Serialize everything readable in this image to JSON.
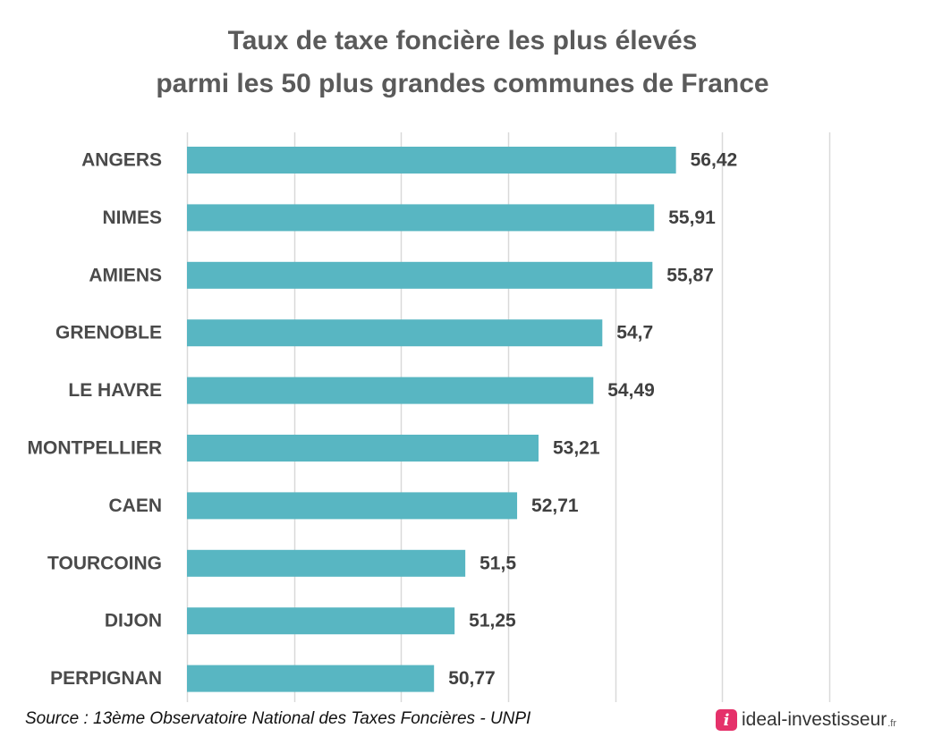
{
  "title_lines": [
    "Taux de taxe foncière les plus élevés",
    "parmi les 50 plus grandes communes de France"
  ],
  "source": "Source : 13ème Observatoire National des Taxes Foncières - UNPI",
  "brand": {
    "icon_letter": "i",
    "name": "ideal-investisseur",
    "tld": ".fr",
    "icon_color": "#e5316a"
  },
  "chart_data": {
    "type": "bar",
    "orientation": "horizontal",
    "title": "Taux de taxe foncière les plus élevés parmi les 50 plus grandes communes de France",
    "categories": [
      "ANGERS",
      "NIMES",
      "AMIENS",
      "GRENOBLE",
      "LE HAVRE",
      "MONTPELLIER",
      "CAEN",
      "TOURCOING",
      "DIJON",
      "PERPIGNAN"
    ],
    "values": [
      56.42,
      55.91,
      55.87,
      54.7,
      54.49,
      53.21,
      52.71,
      51.5,
      51.25,
      50.77
    ],
    "value_labels": [
      "56,42",
      "55,91",
      "55,87",
      "54,7",
      "54,49",
      "53,21",
      "52,71",
      "51,5",
      "51,25",
      "50,77"
    ],
    "xlim": [
      45,
      60
    ],
    "x_gridlines": [
      45,
      47.5,
      50,
      52.5,
      55,
      57.5,
      60
    ],
    "grid": true,
    "bar_color": "#58b6c2",
    "legend": "none"
  }
}
